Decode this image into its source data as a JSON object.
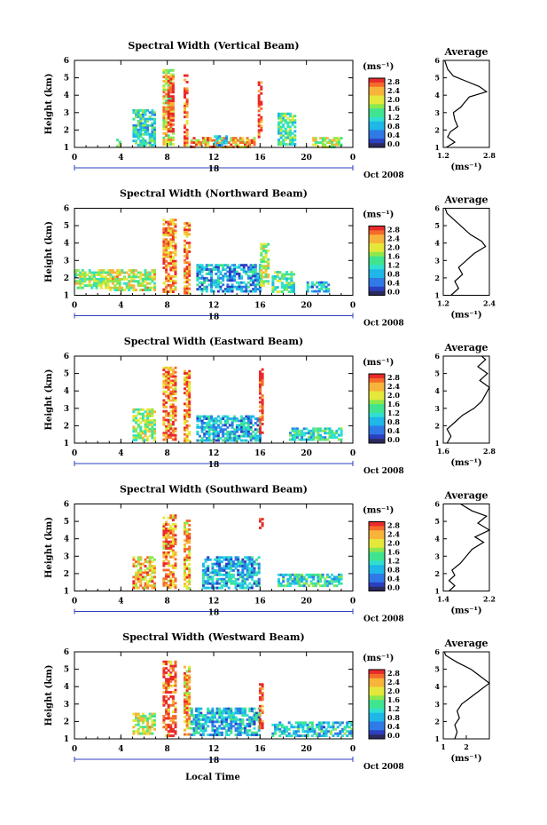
{
  "footer": {
    "xlabel": "Local Time"
  },
  "colors": {
    "colormap": [
      "#2a2a5e",
      "#2b3fc0",
      "#2f7ae6",
      "#1fb6e8",
      "#2fe0d0",
      "#40e48f",
      "#8ee84c",
      "#e5e83a",
      "#f8b43a",
      "#f56b2b",
      "#e82a2a"
    ]
  },
  "chart_data": [
    {
      "type": "heatmap",
      "title": "Spectral Width (Vertical Beam)",
      "ylabel": "Height (km)",
      "ylim": [
        1,
        6
      ],
      "yticks": [
        "1",
        "2",
        "3",
        "4",
        "5",
        "6"
      ],
      "xlim": [
        0,
        24
      ],
      "xticks": [
        "0",
        "4",
        "8",
        "12",
        "16",
        "20",
        "0"
      ],
      "date_label": "18",
      "date_suffix": "Oct 2008",
      "colorbar": {
        "unit": "(ms⁻¹)",
        "ticks": [
          "2.8",
          "2.4",
          "2.0",
          "1.6",
          "1.2",
          "0.8",
          "0.4",
          "0.0"
        ],
        "range": [
          0,
          2.8
        ]
      },
      "average": {
        "title": "Average",
        "xlabel": "(ms⁻¹)",
        "xticks": [
          "1.2",
          "2.8"
        ],
        "xlim": [
          1.2,
          2.8
        ],
        "ylim": [
          1,
          6
        ],
        "yticks": [
          "1",
          "2",
          "3",
          "4",
          "5",
          "6"
        ],
        "profile": [
          [
            1.3,
            1.0
          ],
          [
            1.6,
            1.3
          ],
          [
            1.35,
            1.6
          ],
          [
            1.45,
            1.9
          ],
          [
            1.7,
            2.2
          ],
          [
            1.6,
            2.6
          ],
          [
            1.55,
            3.0
          ],
          [
            1.8,
            3.3
          ],
          [
            1.95,
            3.6
          ],
          [
            2.1,
            3.9
          ],
          [
            2.7,
            4.2
          ],
          [
            2.45,
            4.5
          ],
          [
            2.0,
            4.8
          ],
          [
            1.55,
            5.1
          ],
          [
            1.35,
            5.5
          ],
          [
            1.25,
            6.0
          ]
        ]
      },
      "regions": [
        {
          "t": [
            3.6,
            4.0
          ],
          "h": [
            1.1,
            1.5
          ],
          "v": 1.8
        },
        {
          "t": [
            5.0,
            7.0
          ],
          "h": [
            1.2,
            3.2
          ],
          "v": 1.2
        },
        {
          "t": [
            7.6,
            8.6
          ],
          "h": [
            1.2,
            5.5
          ],
          "v": 2.0
        },
        {
          "t": [
            8.0,
            8.6
          ],
          "h": [
            2.0,
            5.0
          ],
          "v": 2.8
        },
        {
          "t": [
            9.4,
            9.8
          ],
          "h": [
            1.2,
            5.2
          ],
          "v": 2.6
        },
        {
          "t": [
            10.0,
            15.5
          ],
          "h": [
            1.1,
            1.6
          ],
          "v": 2.2
        },
        {
          "t": [
            12.0,
            13.2
          ],
          "h": [
            1.1,
            1.7
          ],
          "v": 1.0
        },
        {
          "t": [
            15.8,
            16.1
          ],
          "h": [
            1.6,
            4.8
          ],
          "v": 2.8
        },
        {
          "t": [
            17.5,
            19.0
          ],
          "h": [
            1.2,
            3.0
          ],
          "v": 1.4
        },
        {
          "t": [
            20.5,
            23.0
          ],
          "h": [
            1.1,
            1.6
          ],
          "v": 1.8
        }
      ]
    },
    {
      "type": "heatmap",
      "title": "Spectral Width (Northward Beam)",
      "ylabel": "Height (km)",
      "ylim": [
        1,
        6
      ],
      "yticks": [
        "1",
        "2",
        "3",
        "4",
        "5",
        "6"
      ],
      "xlim": [
        0,
        24
      ],
      "xticks": [
        "0",
        "4",
        "8",
        "12",
        "16",
        "20",
        "0"
      ],
      "date_label": "18",
      "date_suffix": "Oct 2008",
      "colorbar": {
        "unit": "(ms⁻¹)",
        "ticks": [
          "2.8",
          "2.4",
          "2.0",
          "1.6",
          "1.2",
          "0.8",
          "0.4",
          "0.0"
        ],
        "range": [
          0,
          2.8
        ]
      },
      "average": {
        "title": "Average",
        "xlabel": "(ms⁻¹)",
        "xticks": [
          "1.2",
          "2.4"
        ],
        "xlim": [
          1.2,
          2.4
        ],
        "ylim": [
          1,
          6
        ],
        "yticks": [
          "1",
          "2",
          "3",
          "4",
          "5",
          "6"
        ],
        "profile": [
          [
            1.4,
            1.0
          ],
          [
            1.6,
            1.4
          ],
          [
            1.5,
            1.8
          ],
          [
            1.7,
            2.2
          ],
          [
            1.6,
            2.6
          ],
          [
            1.8,
            3.0
          ],
          [
            2.0,
            3.4
          ],
          [
            2.3,
            3.8
          ],
          [
            2.2,
            4.1
          ],
          [
            1.9,
            4.5
          ],
          [
            1.7,
            4.9
          ],
          [
            1.5,
            5.3
          ],
          [
            1.3,
            5.7
          ],
          [
            1.25,
            6.0
          ]
        ]
      },
      "regions": [
        {
          "t": [
            0.0,
            3.0
          ],
          "h": [
            1.5,
            2.5
          ],
          "v": 1.6
        },
        {
          "t": [
            3.0,
            7.0
          ],
          "h": [
            1.3,
            2.5
          ],
          "v": 1.8
        },
        {
          "t": [
            7.6,
            8.7
          ],
          "h": [
            1.2,
            5.4
          ],
          "v": 2.4
        },
        {
          "t": [
            9.4,
            9.9
          ],
          "h": [
            1.2,
            5.2
          ],
          "v": 2.4
        },
        {
          "t": [
            10.5,
            16.0
          ],
          "h": [
            1.2,
            2.8
          ],
          "v": 0.8
        },
        {
          "t": [
            16.0,
            16.8
          ],
          "h": [
            1.6,
            4.0
          ],
          "v": 1.8
        },
        {
          "t": [
            17.0,
            19.0
          ],
          "h": [
            1.2,
            2.4
          ],
          "v": 1.4
        },
        {
          "t": [
            20.0,
            22.0
          ],
          "h": [
            1.3,
            1.8
          ],
          "v": 0.9
        }
      ]
    },
    {
      "type": "heatmap",
      "title": "Spectral Width (Eastward Beam)",
      "ylabel": "Height (km)",
      "ylim": [
        1,
        6
      ],
      "yticks": [
        "1",
        "2",
        "3",
        "4",
        "5",
        "6"
      ],
      "xlim": [
        0,
        24
      ],
      "xticks": [
        "0",
        "4",
        "8",
        "12",
        "16",
        "20",
        "0"
      ],
      "date_label": "18",
      "date_suffix": "Oct 2008",
      "colorbar": {
        "unit": "(ms⁻¹)",
        "ticks": [
          "2.8",
          "2.4",
          "2.0",
          "1.6",
          "1.2",
          "0.8",
          "0.4",
          "0.0"
        ],
        "range": [
          0,
          2.8
        ]
      },
      "average": {
        "title": "Average",
        "xlabel": "(ms⁻¹)",
        "xticks": [
          "1.6",
          "2.8"
        ],
        "xlim": [
          1.6,
          2.8
        ],
        "ylim": [
          1,
          6
        ],
        "yticks": [
          "1",
          "2",
          "3",
          "4",
          "5",
          "6"
        ],
        "profile": [
          [
            1.7,
            1.0
          ],
          [
            1.8,
            1.4
          ],
          [
            1.7,
            1.8
          ],
          [
            1.9,
            2.2
          ],
          [
            2.1,
            2.6
          ],
          [
            2.4,
            3.0
          ],
          [
            2.6,
            3.4
          ],
          [
            2.7,
            3.8
          ],
          [
            2.8,
            4.2
          ],
          [
            2.55,
            4.6
          ],
          [
            2.75,
            5.0
          ],
          [
            2.5,
            5.4
          ],
          [
            2.7,
            5.8
          ],
          [
            2.6,
            6.0
          ]
        ]
      },
      "regions": [
        {
          "t": [
            5.0,
            7.0
          ],
          "h": [
            1.2,
            3.0
          ],
          "v": 1.6
        },
        {
          "t": [
            7.6,
            8.7
          ],
          "h": [
            1.2,
            5.4
          ],
          "v": 2.4
        },
        {
          "t": [
            9.4,
            9.9
          ],
          "h": [
            1.2,
            5.2
          ],
          "v": 2.4
        },
        {
          "t": [
            10.5,
            16.0
          ],
          "h": [
            1.2,
            2.6
          ],
          "v": 0.9
        },
        {
          "t": [
            15.9,
            16.2
          ],
          "h": [
            1.6,
            5.3
          ],
          "v": 2.8
        },
        {
          "t": [
            18.5,
            23.0
          ],
          "h": [
            1.2,
            1.9
          ],
          "v": 1.2
        }
      ]
    },
    {
      "type": "heatmap",
      "title": "Spectral Width (Southward Beam)",
      "ylabel": "Height (km)",
      "ylim": [
        1,
        6
      ],
      "yticks": [
        "1",
        "2",
        "3",
        "4",
        "5",
        "6"
      ],
      "xlim": [
        0,
        24
      ],
      "xticks": [
        "0",
        "4",
        "8",
        "12",
        "16",
        "20",
        "0"
      ],
      "date_label": "18",
      "date_suffix": "Oct 2008",
      "colorbar": {
        "unit": "(ms⁻¹)",
        "ticks": [
          "2.8",
          "2.4",
          "2.0",
          "1.6",
          "1.2",
          "0.8",
          "0.4",
          "0.0"
        ],
        "range": [
          0,
          2.8
        ]
      },
      "average": {
        "title": "Average",
        "xlabel": "(ms⁻¹)",
        "xticks": [
          "1.4",
          "2.2"
        ],
        "xlim": [
          1.4,
          2.2
        ],
        "ylim": [
          1,
          6
        ],
        "yticks": [
          "1",
          "2",
          "3",
          "4",
          "5",
          "6"
        ],
        "profile": [
          [
            1.5,
            1.0
          ],
          [
            1.6,
            1.3
          ],
          [
            1.5,
            1.6
          ],
          [
            1.6,
            1.9
          ],
          [
            1.55,
            2.2
          ],
          [
            1.7,
            2.6
          ],
          [
            1.8,
            3.0
          ],
          [
            1.9,
            3.4
          ],
          [
            2.1,
            3.8
          ],
          [
            1.95,
            4.1
          ],
          [
            2.2,
            4.5
          ],
          [
            2.0,
            4.9
          ],
          [
            2.15,
            5.3
          ],
          [
            1.9,
            5.6
          ],
          [
            1.7,
            6.0
          ]
        ]
      },
      "regions": [
        {
          "t": [
            5.0,
            7.0
          ],
          "h": [
            1.2,
            3.0
          ],
          "v": 2.2
        },
        {
          "t": [
            7.6,
            8.7
          ],
          "h": [
            1.2,
            5.4
          ],
          "v": 2.4
        },
        {
          "t": [
            9.4,
            9.9
          ],
          "h": [
            1.2,
            5.1
          ],
          "v": 2.2
        },
        {
          "t": [
            11.0,
            16.0
          ],
          "h": [
            1.2,
            3.0
          ],
          "v": 0.9
        },
        {
          "t": [
            15.9,
            16.2
          ],
          "h": [
            4.6,
            5.2
          ],
          "v": 2.8
        },
        {
          "t": [
            17.5,
            23.0
          ],
          "h": [
            1.3,
            2.0
          ],
          "v": 1.2
        }
      ]
    },
    {
      "type": "heatmap",
      "title": "Spectral Width (Westward Beam)",
      "ylabel": "Height (km)",
      "ylim": [
        1,
        6
      ],
      "yticks": [
        "1",
        "2",
        "3",
        "4",
        "5",
        "6"
      ],
      "xlim": [
        0,
        24
      ],
      "xticks": [
        "0",
        "4",
        "8",
        "12",
        "16",
        "20",
        "0"
      ],
      "date_label": "18",
      "date_suffix": "Oct 2008",
      "colorbar": {
        "unit": "(ms⁻¹)",
        "ticks": [
          "2.8",
          "2.4",
          "2.0",
          "1.6",
          "1.2",
          "0.8",
          "0.4",
          "0.0"
        ],
        "range": [
          0,
          2.8
        ]
      },
      "average": {
        "title": "Average",
        "xlabel": "(ms⁻¹)",
        "xticks": [
          "1",
          "2"
        ],
        "xlim": [
          1,
          3
        ],
        "ylim": [
          1,
          6
        ],
        "yticks": [
          "1",
          "2",
          "3",
          "4",
          "5",
          "6"
        ],
        "profile": [
          [
            1.5,
            1.0
          ],
          [
            1.6,
            1.4
          ],
          [
            1.5,
            1.8
          ],
          [
            1.7,
            2.2
          ],
          [
            1.6,
            2.6
          ],
          [
            1.8,
            3.0
          ],
          [
            2.2,
            3.4
          ],
          [
            2.6,
            3.8
          ],
          [
            3.0,
            4.2
          ],
          [
            2.6,
            4.6
          ],
          [
            2.2,
            5.0
          ],
          [
            1.6,
            5.4
          ],
          [
            1.1,
            5.8
          ],
          [
            1.05,
            6.0
          ]
        ]
      },
      "regions": [
        {
          "t": [
            5.0,
            7.0
          ],
          "h": [
            1.3,
            2.5
          ],
          "v": 1.8
        },
        {
          "t": [
            7.6,
            8.7
          ],
          "h": [
            1.2,
            5.5
          ],
          "v": 2.6
        },
        {
          "t": [
            9.4,
            9.9
          ],
          "h": [
            1.2,
            5.2
          ],
          "v": 2.2
        },
        {
          "t": [
            10.0,
            16.0
          ],
          "h": [
            1.2,
            2.8
          ],
          "v": 0.9
        },
        {
          "t": [
            15.9,
            16.2
          ],
          "h": [
            1.6,
            4.2
          ],
          "v": 2.8
        },
        {
          "t": [
            17.0,
            24.0
          ],
          "h": [
            1.2,
            2.0
          ],
          "v": 1.0
        }
      ]
    }
  ]
}
